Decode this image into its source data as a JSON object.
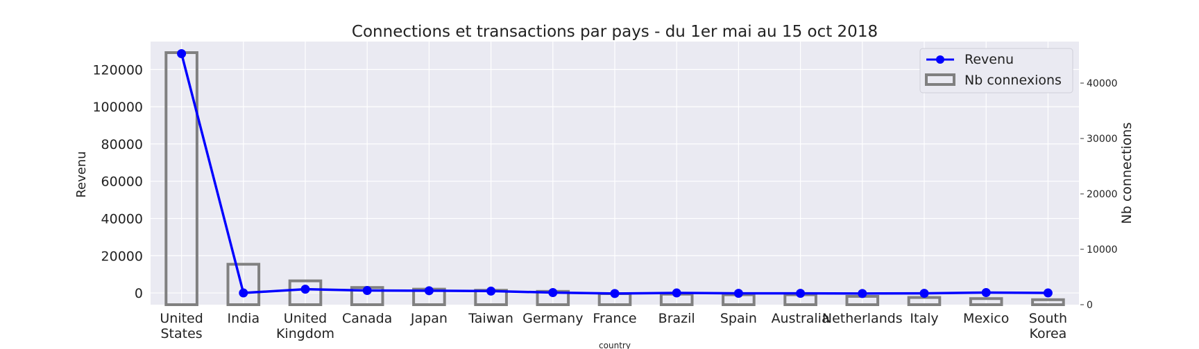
{
  "chart_data": {
    "type": "bar",
    "title": "Connections et transactions par pays - du 1er mai au 15 oct 2018",
    "xlabel": "country",
    "ylabel": "Revenu",
    "y2label": "Nb connections",
    "categories": [
      [
        "United",
        "States"
      ],
      [
        "India"
      ],
      [
        "United",
        "Kingdom"
      ],
      [
        "Canada"
      ],
      [
        "Japan"
      ],
      [
        "Taiwan"
      ],
      [
        "Germany"
      ],
      [
        "France"
      ],
      [
        "Brazil"
      ],
      [
        "Spain"
      ],
      [
        "Australia"
      ],
      [
        "Netherlands"
      ],
      [
        "Italy"
      ],
      [
        "Mexico"
      ],
      [
        "South",
        "Korea"
      ]
    ],
    "series": [
      {
        "name": "Revenu",
        "type": "line",
        "axis": "left",
        "color": "#0000ff",
        "values": [
          128500,
          0,
          2000,
          1300,
          1200,
          1000,
          200,
          -300,
          0,
          -200,
          -200,
          -300,
          -200,
          200,
          0
        ]
      },
      {
        "name": "Nb connexions",
        "type": "bar",
        "axis": "right",
        "color": "#808080",
        "values": [
          45500,
          7300,
          4300,
          3100,
          2800,
          2600,
          2400,
          2000,
          1900,
          1800,
          1800,
          1500,
          1300,
          1100,
          900
        ]
      }
    ],
    "ylim": [
      -6300,
      135000
    ],
    "y2lim": [
      0,
      47500
    ],
    "yticks": [
      0,
      20000,
      40000,
      60000,
      80000,
      100000,
      120000
    ],
    "y2ticks": [
      0,
      10000,
      20000,
      30000,
      40000
    ],
    "grid": true,
    "legend_position": "top-right",
    "background": "#eaeaf2"
  }
}
